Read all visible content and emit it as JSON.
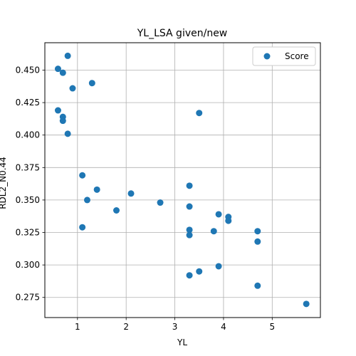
{
  "chart_data": {
    "type": "scatter",
    "title": "YL_LSA given/new",
    "xlabel": "YL",
    "ylabel": "RDL2_N0.44",
    "xlim": [
      0.33,
      5.99
    ],
    "ylim": [
      0.2595,
      0.4711
    ],
    "xticks": [
      1,
      2,
      3,
      4,
      5
    ],
    "xtick_labels": [
      "1",
      "2",
      "3",
      "4",
      "5"
    ],
    "yticks": [
      0.275,
      0.3,
      0.325,
      0.35,
      0.375,
      0.4,
      0.425,
      0.45
    ],
    "ytick_labels": [
      "0.275",
      "0.300",
      "0.325",
      "0.350",
      "0.375",
      "0.400",
      "0.425",
      "0.450"
    ],
    "grid": true,
    "legend_position": "top-right",
    "series": [
      {
        "name": "Score",
        "color": "#1f77b4",
        "points": [
          [
            0.8,
            0.461
          ],
          [
            0.6,
            0.451
          ],
          [
            0.7,
            0.448
          ],
          [
            0.9,
            0.436
          ],
          [
            1.3,
            0.44
          ],
          [
            0.6,
            0.419
          ],
          [
            0.7,
            0.414
          ],
          [
            0.7,
            0.411
          ],
          [
            0.8,
            0.401
          ],
          [
            1.1,
            0.369
          ],
          [
            1.4,
            0.358
          ],
          [
            1.2,
            0.35
          ],
          [
            1.1,
            0.329
          ],
          [
            1.8,
            0.342
          ],
          [
            2.1,
            0.355
          ],
          [
            2.7,
            0.348
          ],
          [
            3.3,
            0.361
          ],
          [
            3.3,
            0.345
          ],
          [
            3.3,
            0.327
          ],
          [
            3.3,
            0.323
          ],
          [
            3.3,
            0.292
          ],
          [
            3.5,
            0.417
          ],
          [
            3.5,
            0.295
          ],
          [
            3.8,
            0.326
          ],
          [
            3.9,
            0.339
          ],
          [
            3.9,
            0.299
          ],
          [
            4.1,
            0.337
          ],
          [
            4.1,
            0.334
          ],
          [
            4.7,
            0.326
          ],
          [
            4.7,
            0.318
          ],
          [
            4.7,
            0.284
          ],
          [
            5.7,
            0.27
          ]
        ]
      }
    ]
  }
}
